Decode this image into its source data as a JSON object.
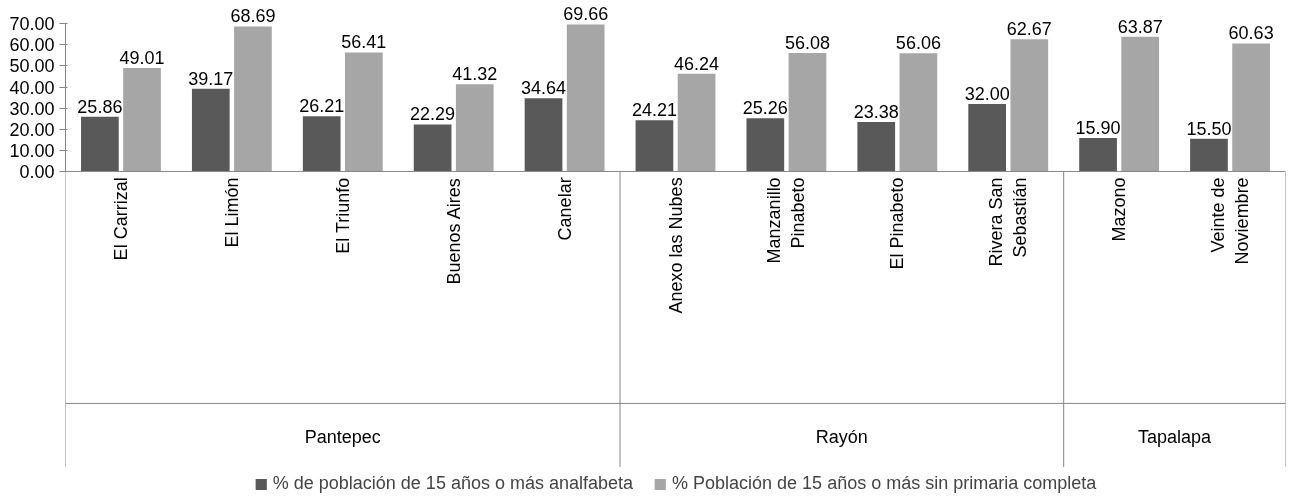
{
  "chart_data": {
    "type": "bar",
    "categories": [
      "El Carrizal",
      "El Limón",
      "El Triunfo",
      "Buenos Aires",
      "Canelar",
      "Anexo las Nubes",
      "Manzanillo Pinabeto",
      "El Pinabeto",
      "Rivera San Sebastián",
      "Mazono",
      "Veinte de Noviembre"
    ],
    "series": [
      {
        "name": "% de población de 15 años o más analfabeta",
        "color": "#595959",
        "values": [
          25.86,
          39.17,
          26.21,
          22.29,
          34.64,
          24.21,
          25.26,
          23.38,
          32.0,
          15.9,
          15.5
        ],
        "value_labels": [
          "25.86",
          "39.17",
          "26.21",
          "22.29",
          "34.64",
          "24.21",
          "25.26",
          "23.38",
          "32.00",
          "15.90",
          "15.50"
        ]
      },
      {
        "name": "% Población de 15 años o más sin primaria completa",
        "color": "#a6a6a6",
        "values": [
          49.01,
          68.69,
          56.41,
          41.32,
          69.66,
          46.24,
          56.08,
          56.06,
          62.67,
          63.87,
          60.63
        ],
        "value_labels": [
          "49.01",
          "68.69",
          "56.41",
          "41.32",
          "69.66",
          "46.24",
          "56.08",
          "56.06",
          "62.67",
          "63.87",
          "60.63"
        ]
      }
    ],
    "annotations": [
      "Pantepec",
      "Rayón",
      "Tapalapa"
    ],
    "ylim": [
      0,
      70
    ],
    "yticks": [
      {
        "value": 0,
        "label": "0.00"
      },
      {
        "value": 10,
        "label": "10.00"
      },
      {
        "value": 20,
        "label": "20.00"
      },
      {
        "value": 30,
        "label": "30.00"
      },
      {
        "value": 40,
        "label": "40.00"
      },
      {
        "value": 50,
        "label": "50.00"
      },
      {
        "value": 60,
        "label": "60.00"
      },
      {
        "value": 70,
        "label": "70.00"
      }
    ],
    "grid": false,
    "legend": "bottom"
  }
}
